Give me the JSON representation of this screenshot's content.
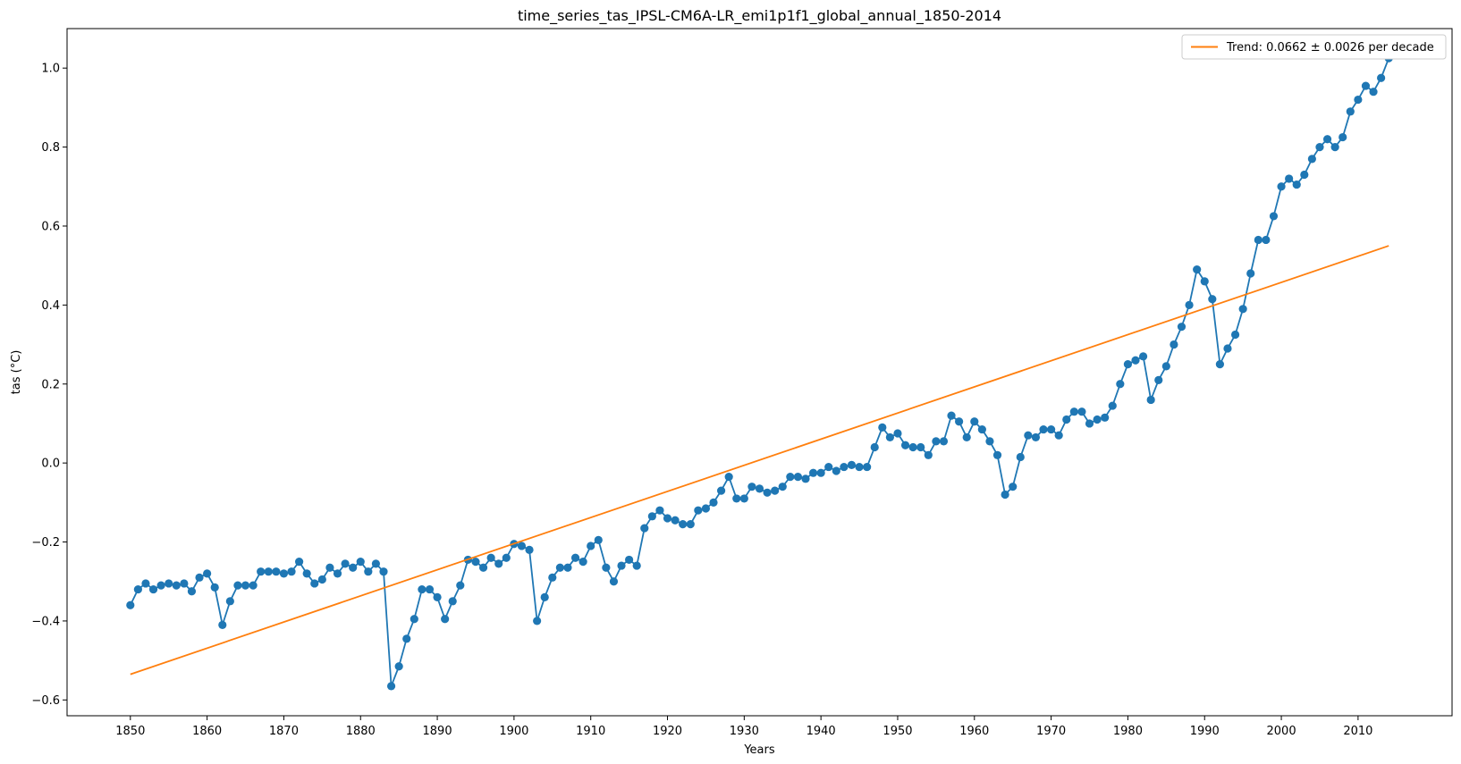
{
  "chart_data": {
    "type": "line",
    "title": "time_series_tas_IPSL-CM6A-LR_emi1p1f1_global_annual_1850-2014",
    "xlabel": "Years",
    "ylabel": "tas ($^{\\circ}C$)",
    "ylabel_display": "tas (°C)",
    "xlim": [
      1841.75,
      2022.25
    ],
    "ylim": [
      -0.64,
      1.1
    ],
    "xticks": [
      1850,
      1860,
      1870,
      1880,
      1890,
      1900,
      1910,
      1920,
      1930,
      1940,
      1950,
      1960,
      1970,
      1980,
      1990,
      2000,
      2010
    ],
    "yticks": [
      -0.6,
      -0.4,
      -0.2,
      0.0,
      0.2,
      0.4,
      0.6,
      0.8,
      1.0
    ],
    "ytick_labels": [
      "−0.6",
      "−0.4",
      "−0.2",
      "0.0",
      "0.2",
      "0.4",
      "0.6",
      "0.8",
      "1.0"
    ],
    "grid": false,
    "legend_position": "top-right",
    "colors": {
      "series": "#1f77b4",
      "trend": "#ff7f0e"
    },
    "series": [
      {
        "x_start": 1850,
        "x_end": 2014,
        "marker": "circle",
        "values": [
          -0.36,
          -0.32,
          -0.305,
          -0.32,
          -0.31,
          -0.305,
          -0.31,
          -0.305,
          -0.325,
          -0.29,
          -0.28,
          -0.315,
          -0.41,
          -0.35,
          -0.31,
          -0.31,
          -0.31,
          -0.275,
          -0.275,
          -0.275,
          -0.28,
          -0.275,
          -0.25,
          -0.28,
          -0.305,
          -0.295,
          -0.265,
          -0.28,
          -0.255,
          -0.265,
          -0.25,
          -0.275,
          -0.255,
          -0.275,
          -0.565,
          -0.515,
          -0.445,
          -0.395,
          -0.32,
          -0.32,
          -0.34,
          -0.395,
          -0.35,
          -0.31,
          -0.245,
          -0.25,
          -0.265,
          -0.24,
          -0.255,
          -0.24,
          -0.205,
          -0.21,
          -0.22,
          -0.4,
          -0.34,
          -0.29,
          -0.265,
          -0.265,
          -0.24,
          -0.25,
          -0.21,
          -0.195,
          -0.265,
          -0.3,
          -0.26,
          -0.245,
          -0.26,
          -0.165,
          -0.135,
          -0.12,
          -0.14,
          -0.145,
          -0.155,
          -0.155,
          -0.12,
          -0.115,
          -0.1,
          -0.07,
          -0.035,
          -0.09,
          -0.09,
          -0.06,
          -0.065,
          -0.075,
          -0.07,
          -0.06,
          -0.035,
          -0.035,
          -0.04,
          -0.025,
          -0.025,
          -0.01,
          -0.02,
          -0.01,
          -0.005,
          -0.01,
          -0.01,
          0.04,
          0.09,
          0.065,
          0.075,
          0.045,
          0.04,
          0.04,
          0.02,
          0.055,
          0.055,
          0.12,
          0.105,
          0.065,
          0.105,
          0.085,
          0.055,
          0.02,
          -0.08,
          -0.06,
          0.015,
          0.07,
          0.065,
          0.085,
          0.085,
          0.07,
          0.11,
          0.13,
          0.13,
          0.1,
          0.11,
          0.115,
          0.145,
          0.2,
          0.25,
          0.26,
          0.27,
          0.16,
          0.21,
          0.245,
          0.3,
          0.345,
          0.4,
          0.49,
          0.46,
          0.415,
          0.25,
          0.29,
          0.325,
          0.39,
          0.48,
          0.565,
          0.565,
          0.625,
          0.7,
          0.72,
          0.705,
          0.73,
          0.77,
          0.8,
          0.82,
          0.8,
          0.825,
          0.89,
          0.92,
          0.955,
          0.94,
          0.975,
          1.025
        ]
      }
    ],
    "trend": {
      "label": "Trend: 0.0662 ± 0.0026 per decade",
      "x": [
        1850,
        2014
      ],
      "y": [
        -0.535,
        0.55
      ]
    }
  }
}
